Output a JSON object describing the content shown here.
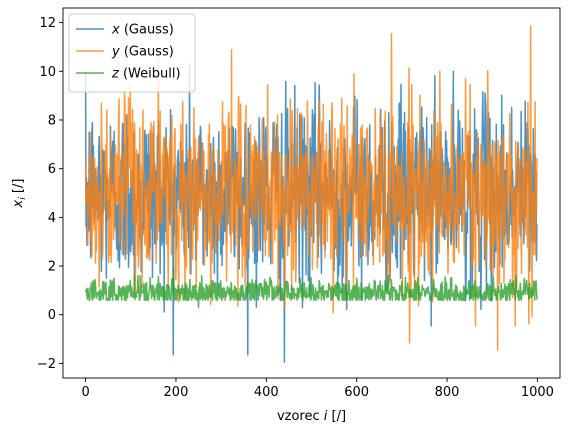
{
  "chart_data": {
    "type": "line",
    "xlabel": "vzorec i [/]",
    "ylabel": "x_i [/]",
    "xlim": [
      -50,
      1050
    ],
    "ylim": [
      -2.6,
      12.6
    ],
    "x_ticks": [
      0,
      200,
      400,
      600,
      800,
      1000
    ],
    "y_ticks": [
      -2,
      0,
      2,
      4,
      6,
      8,
      10,
      12
    ],
    "x_tick_labels": [
      "0",
      "200",
      "400",
      "600",
      "800",
      "1000"
    ],
    "y_tick_labels": [
      "−2",
      "0",
      "2",
      "4",
      "6",
      "8",
      "10",
      "12"
    ],
    "legend_position": "top-left",
    "grid": false,
    "n_samples": 1000,
    "series": [
      {
        "name": "x (Gauss)",
        "var": "x",
        "dist": "(Gauss)",
        "color": "#1f77b4",
        "mean": 5.0,
        "std": 1.9,
        "min": -1.95,
        "max": 10.3
      },
      {
        "name": "y (Gauss)",
        "var": "y",
        "dist": "(Gauss)",
        "color": "#ff7f0e",
        "mean": 5.0,
        "std": 1.9,
        "min": -1.45,
        "max": 11.85
      },
      {
        "name": "z (Weibull)",
        "var": "z",
        "dist": "(Weibull)",
        "color": "#2ca02c",
        "mean": 0.9,
        "std": 0.3,
        "min": 0.3,
        "max": 1.9
      }
    ]
  }
}
